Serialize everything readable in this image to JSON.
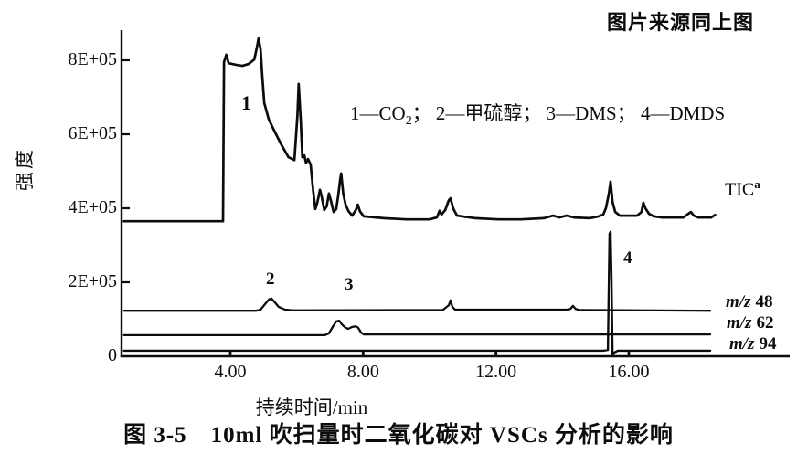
{
  "source_note": "图片来源同上图",
  "caption": "图 3-5　10ml 吹扫量时二氧化碳对 VSCs 分析的影响",
  "axes": {
    "y_label": "强度",
    "x_label": "持续时间/min"
  },
  "legend": {
    "part1": "1—CO",
    "co2_sub": "2",
    "part2": "； 2—甲硫醇； 3—DMS； 4—DMDS"
  },
  "peaks": [
    {
      "label": "1"
    },
    {
      "label": "2"
    },
    {
      "label": "3"
    },
    {
      "label": "4"
    }
  ],
  "trace_labels": {
    "tic": {
      "main": "TIC",
      "sup": "a"
    },
    "mz48": {
      "prefix": "m/z",
      "value": "48"
    },
    "mz62": {
      "prefix": "m/z",
      "value": "62"
    },
    "mz94": {
      "prefix": "m/z",
      "value": "94"
    }
  },
  "chart_data": {
    "type": "line",
    "title": "图 3-5 10ml 吹扫量时二氧化碳对 VSCs 分析的影响",
    "xlabel": "持续时间/min",
    "ylabel": "强度",
    "y_unit": "1E+05 counts",
    "xlim": [
      0.7,
      20.8
    ],
    "ylim": [
      0,
      8.8
    ],
    "grid": false,
    "legend_position": "inside-top",
    "annotations": "1—CO₂；2—甲硫醇；3—DMS；4—DMDS",
    "x_ticks": [
      4,
      8,
      12,
      16
    ],
    "x_tick_labels": [
      "4.00",
      "8.00",
      "12.00",
      "16.00"
    ],
    "y_ticks": [
      8,
      6,
      4,
      2,
      0
    ],
    "y_tick_labels": [
      "8E+05",
      "6E+05",
      "4E+05",
      "2E+05",
      "0"
    ],
    "series": [
      {
        "name": "TIC",
        "points": [
          [
            0.8,
            3.65
          ],
          [
            3.78,
            3.65
          ],
          [
            3.81,
            7.95
          ],
          [
            3.88,
            8.15
          ],
          [
            3.95,
            7.92
          ],
          [
            4.17,
            7.88
          ],
          [
            4.36,
            7.85
          ],
          [
            4.55,
            7.9
          ],
          [
            4.72,
            8.02
          ],
          [
            4.8,
            8.35
          ],
          [
            4.85,
            8.59
          ],
          [
            4.91,
            8.3
          ],
          [
            4.96,
            7.6
          ],
          [
            5.02,
            6.85
          ],
          [
            5.16,
            6.4
          ],
          [
            5.35,
            6.05
          ],
          [
            5.55,
            5.7
          ],
          [
            5.75,
            5.38
          ],
          [
            5.93,
            5.3
          ],
          [
            6.02,
            6.5
          ],
          [
            6.06,
            7.36
          ],
          [
            6.12,
            6.4
          ],
          [
            6.17,
            5.38
          ],
          [
            6.23,
            5.43
          ],
          [
            6.28,
            5.23
          ],
          [
            6.34,
            5.33
          ],
          [
            6.42,
            5.18
          ],
          [
            6.5,
            4.44
          ],
          [
            6.56,
            3.98
          ],
          [
            6.62,
            4.15
          ],
          [
            6.7,
            4.5
          ],
          [
            6.75,
            4.32
          ],
          [
            6.83,
            3.95
          ],
          [
            6.9,
            4.05
          ],
          [
            6.97,
            4.4
          ],
          [
            7.03,
            4.2
          ],
          [
            7.11,
            3.9
          ],
          [
            7.19,
            3.98
          ],
          [
            7.25,
            4.35
          ],
          [
            7.31,
            4.8
          ],
          [
            7.34,
            4.94
          ],
          [
            7.4,
            4.4
          ],
          [
            7.47,
            4.1
          ],
          [
            7.56,
            3.92
          ],
          [
            7.67,
            3.8
          ],
          [
            7.78,
            3.95
          ],
          [
            7.84,
            4.1
          ],
          [
            7.9,
            3.92
          ],
          [
            8.02,
            3.78
          ],
          [
            8.62,
            3.73
          ],
          [
            9.31,
            3.7
          ],
          [
            10.0,
            3.7
          ],
          [
            10.22,
            3.75
          ],
          [
            10.3,
            3.93
          ],
          [
            10.36,
            3.83
          ],
          [
            10.47,
            3.95
          ],
          [
            10.58,
            4.22
          ],
          [
            10.63,
            4.27
          ],
          [
            10.72,
            3.98
          ],
          [
            10.83,
            3.8
          ],
          [
            11.38,
            3.73
          ],
          [
            12.07,
            3.7
          ],
          [
            12.75,
            3.7
          ],
          [
            13.44,
            3.73
          ],
          [
            13.72,
            3.8
          ],
          [
            13.91,
            3.75
          ],
          [
            14.13,
            3.8
          ],
          [
            14.35,
            3.75
          ],
          [
            14.82,
            3.73
          ],
          [
            15.09,
            3.78
          ],
          [
            15.23,
            3.83
          ],
          [
            15.31,
            4.0
          ],
          [
            15.4,
            4.4
          ],
          [
            15.45,
            4.72
          ],
          [
            15.51,
            4.17
          ],
          [
            15.59,
            3.9
          ],
          [
            15.73,
            3.8
          ],
          [
            16.06,
            3.8
          ],
          [
            16.25,
            3.8
          ],
          [
            16.38,
            3.9
          ],
          [
            16.44,
            4.15
          ],
          [
            16.5,
            4.0
          ],
          [
            16.61,
            3.85
          ],
          [
            16.75,
            3.78
          ],
          [
            17.02,
            3.75
          ],
          [
            17.65,
            3.75
          ],
          [
            17.79,
            3.85
          ],
          [
            17.87,
            3.9
          ],
          [
            17.96,
            3.8
          ],
          [
            18.09,
            3.75
          ],
          [
            18.48,
            3.75
          ],
          [
            18.6,
            3.82
          ]
        ]
      },
      {
        "name": "m/z 48",
        "points": [
          [
            0.8,
            1.23
          ],
          [
            4.77,
            1.23
          ],
          [
            4.91,
            1.26
          ],
          [
            5.05,
            1.41
          ],
          [
            5.16,
            1.53
          ],
          [
            5.24,
            1.56
          ],
          [
            5.32,
            1.48
          ],
          [
            5.46,
            1.33
          ],
          [
            5.65,
            1.26
          ],
          [
            5.9,
            1.24
          ],
          [
            10.4,
            1.25
          ],
          [
            10.58,
            1.38
          ],
          [
            10.63,
            1.51
          ],
          [
            10.69,
            1.33
          ],
          [
            10.77,
            1.26
          ],
          [
            14.13,
            1.26
          ],
          [
            14.24,
            1.28
          ],
          [
            14.32,
            1.36
          ],
          [
            14.4,
            1.28
          ],
          [
            14.51,
            1.25
          ],
          [
            18.45,
            1.23
          ]
        ]
      },
      {
        "name": "m/z 62",
        "points": [
          [
            0.8,
            0.57
          ],
          [
            6.84,
            0.57
          ],
          [
            6.97,
            0.62
          ],
          [
            7.08,
            0.79
          ],
          [
            7.19,
            0.94
          ],
          [
            7.28,
            0.96
          ],
          [
            7.36,
            0.86
          ],
          [
            7.47,
            0.77
          ],
          [
            7.55,
            0.74
          ],
          [
            7.66,
            0.79
          ],
          [
            7.77,
            0.81
          ],
          [
            7.85,
            0.77
          ],
          [
            7.94,
            0.64
          ],
          [
            8.02,
            0.59
          ],
          [
            10.83,
            0.59
          ],
          [
            14.0,
            0.59
          ],
          [
            18.45,
            0.59
          ]
        ]
      },
      {
        "name": "m/z 94",
        "points": [
          [
            0.8,
            0.15
          ],
          [
            15.23,
            0.15
          ],
          [
            15.37,
            0.17
          ],
          [
            15.42,
            3.31
          ],
          [
            15.45,
            3.36
          ],
          [
            15.48,
            2.0
          ],
          [
            15.51,
            0.0
          ],
          [
            15.56,
            0.1
          ],
          [
            15.67,
            0.15
          ],
          [
            18.45,
            0.15
          ]
        ]
      }
    ]
  }
}
